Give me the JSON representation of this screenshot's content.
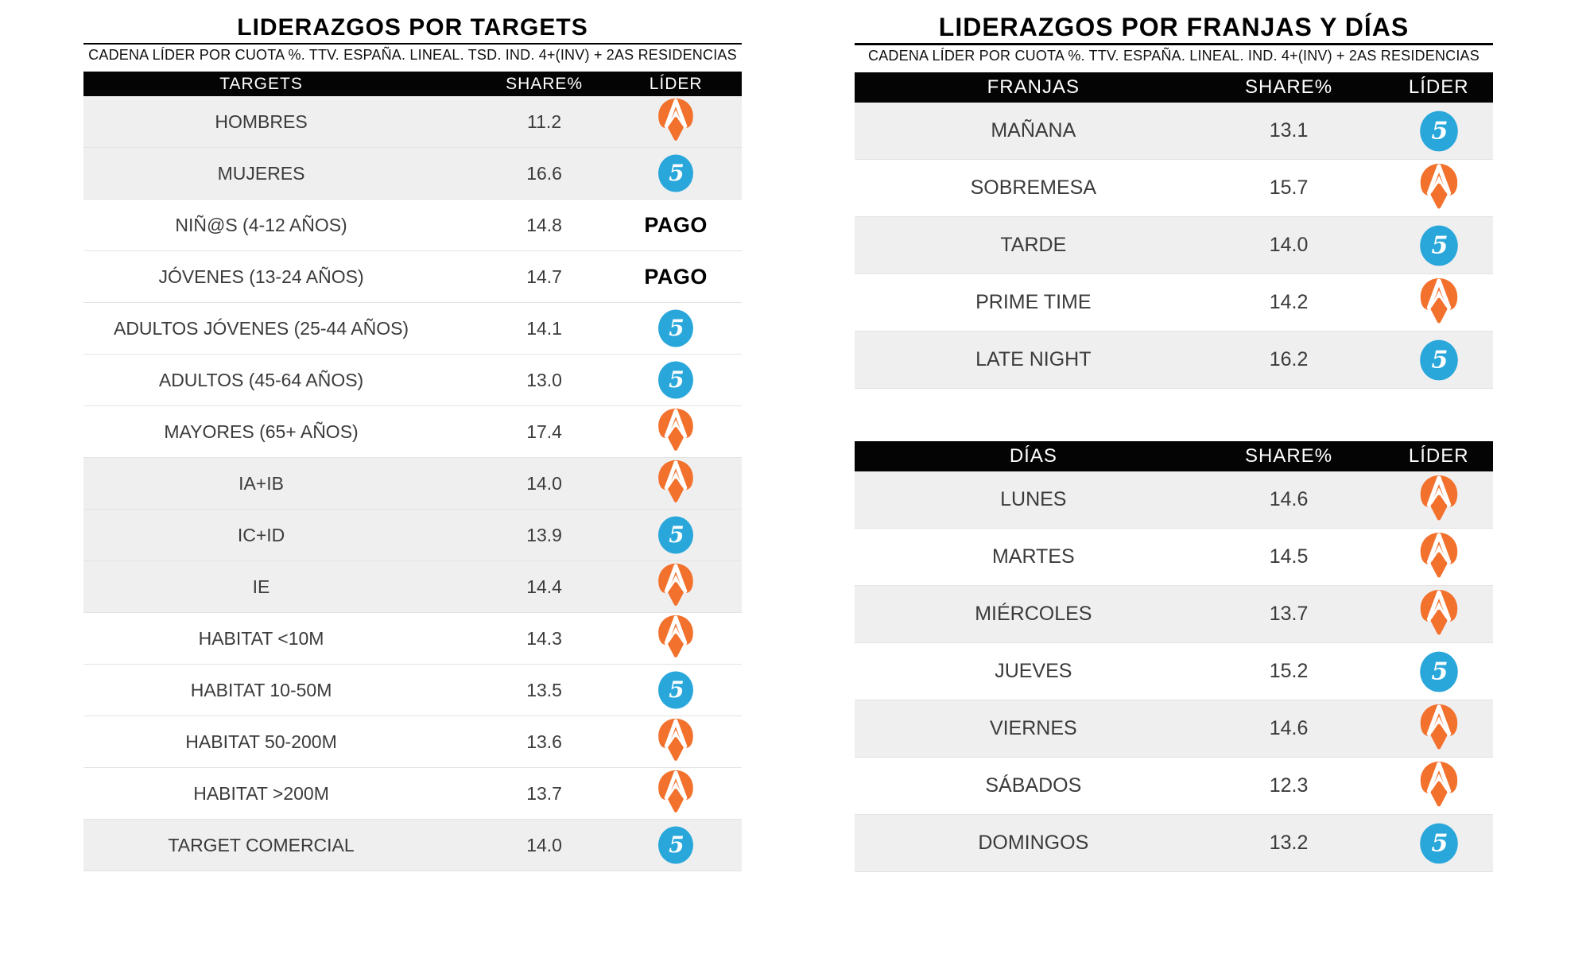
{
  "left_table": {
    "title": "LIDERAZGOS POR TARGETS",
    "subtitle": "CADENA LÍDER POR CUOTA %. TTV. ESPAÑA. LINEAL. TSD. IND. 4+(INV) + 2AS RESIDENCIAS",
    "columns": [
      "TARGETS",
      "SHARE%",
      "LÍDER"
    ],
    "rows": [
      {
        "label": "HOMBRES",
        "share": "11.2",
        "leader": "antena3",
        "shaded": true
      },
      {
        "label": "MUJERES",
        "share": "16.6",
        "leader": "telecinco",
        "shaded": true
      },
      {
        "label": "NIÑ@S (4-12 AÑOS)",
        "share": "14.8",
        "leader": "pago",
        "shaded": false
      },
      {
        "label": "JÓVENES (13-24 AÑOS)",
        "share": "14.7",
        "leader": "pago",
        "shaded": false
      },
      {
        "label": "ADULTOS JÓVENES (25-44 AÑOS)",
        "share": "14.1",
        "leader": "telecinco",
        "shaded": false
      },
      {
        "label": "ADULTOS (45-64 AÑOS)",
        "share": "13.0",
        "leader": "telecinco",
        "shaded": false
      },
      {
        "label": "MAYORES (65+ AÑOS)",
        "share": "17.4",
        "leader": "antena3",
        "shaded": false
      },
      {
        "label": "IA+IB",
        "share": "14.0",
        "leader": "antena3",
        "shaded": true
      },
      {
        "label": "IC+ID",
        "share": "13.9",
        "leader": "telecinco",
        "shaded": true
      },
      {
        "label": "IE",
        "share": "14.4",
        "leader": "antena3",
        "shaded": true
      },
      {
        "label": "HABITAT <10M",
        "share": "14.3",
        "leader": "antena3",
        "shaded": false
      },
      {
        "label": "HABITAT 10-50M",
        "share": "13.5",
        "leader": "telecinco",
        "shaded": false
      },
      {
        "label": "HABITAT 50-200M",
        "share": "13.6",
        "leader": "antena3",
        "shaded": false
      },
      {
        "label": "HABITAT >200M",
        "share": "13.7",
        "leader": "antena3",
        "shaded": false
      },
      {
        "label": "TARGET COMERCIAL",
        "share": "14.0",
        "leader": "telecinco",
        "shaded": true
      }
    ]
  },
  "right_table": {
    "title": "LIDERAZGOS POR FRANJAS Y DÍAS",
    "subtitle": "CADENA LÍDER POR CUOTA %. TTV. ESPAÑA. LINEAL. IND. 4+(INV) + 2AS RESIDENCIAS",
    "franjas": {
      "columns": [
        "FRANJAS",
        "SHARE%",
        "LÍDER"
      ],
      "rows": [
        {
          "label": "MAÑANA",
          "share": "13.1",
          "leader": "telecinco",
          "shaded": true
        },
        {
          "label": "SOBREMESA",
          "share": "15.7",
          "leader": "antena3",
          "shaded": false
        },
        {
          "label": "TARDE",
          "share": "14.0",
          "leader": "telecinco",
          "shaded": true
        },
        {
          "label": "PRIME TIME",
          "share": "14.2",
          "leader": "antena3",
          "shaded": false
        },
        {
          "label": "LATE NIGHT",
          "share": "16.2",
          "leader": "telecinco",
          "shaded": true
        }
      ]
    },
    "dias": {
      "columns": [
        "DÍAS",
        "SHARE%",
        "LÍDER"
      ],
      "rows": [
        {
          "label": "LUNES",
          "share": "14.6",
          "leader": "antena3",
          "shaded": true
        },
        {
          "label": "MARTES",
          "share": "14.5",
          "leader": "antena3",
          "shaded": false
        },
        {
          "label": "MIÉRCOLES",
          "share": "13.7",
          "leader": "antena3",
          "shaded": true
        },
        {
          "label": "JUEVES",
          "share": "15.2",
          "leader": "telecinco",
          "shaded": false
        },
        {
          "label": "VIERNES",
          "share": "14.6",
          "leader": "antena3",
          "shaded": true
        },
        {
          "label": "SÁBADOS",
          "share": "12.3",
          "leader": "antena3",
          "shaded": false
        },
        {
          "label": "DOMINGOS",
          "share": "13.2",
          "leader": "telecinco",
          "shaded": true
        }
      ]
    }
  },
  "leaders": {
    "antena3": {
      "name": "Antena 3",
      "color": "#F2712C"
    },
    "telecinco": {
      "name": "Telecinco",
      "color": "#29A7DB",
      "glyph": "5"
    },
    "pago": {
      "label": "PAGO"
    }
  },
  "chart_data": [
    {
      "type": "table",
      "title": "LIDERAZGOS POR TARGETS",
      "subtitle": "CADENA LÍDER POR CUOTA %. TTV. ESPAÑA. LINEAL. TSD. IND. 4+(INV) + 2AS RESIDENCIAS",
      "columns": [
        "TARGETS",
        "SHARE%",
        "LÍDER"
      ],
      "rows": [
        [
          "HOMBRES",
          11.2,
          "Antena 3"
        ],
        [
          "MUJERES",
          16.6,
          "Telecinco"
        ],
        [
          "NIÑ@S (4-12 AÑOS)",
          14.8,
          "PAGO"
        ],
        [
          "JÓVENES (13-24 AÑOS)",
          14.7,
          "PAGO"
        ],
        [
          "ADULTOS JÓVENES (25-44 AÑOS)",
          14.1,
          "Telecinco"
        ],
        [
          "ADULTOS (45-64 AÑOS)",
          13.0,
          "Telecinco"
        ],
        [
          "MAYORES (65+ AÑOS)",
          17.4,
          "Antena 3"
        ],
        [
          "IA+IB",
          14.0,
          "Antena 3"
        ],
        [
          "IC+ID",
          13.9,
          "Telecinco"
        ],
        [
          "IE",
          14.4,
          "Antena 3"
        ],
        [
          "HABITAT <10M",
          14.3,
          "Antena 3"
        ],
        [
          "HABITAT 10-50M",
          13.5,
          "Telecinco"
        ],
        [
          "HABITAT 50-200M",
          13.6,
          "Antena 3"
        ],
        [
          "HABITAT >200M",
          13.7,
          "Antena 3"
        ],
        [
          "TARGET COMERCIAL",
          14.0,
          "Telecinco"
        ]
      ]
    },
    {
      "type": "table",
      "title": "LIDERAZGOS POR FRANJAS Y DÍAS",
      "subtitle": "CADENA LÍDER POR CUOTA %. TTV. ESPAÑA. LINEAL. IND. 4+(INV) + 2AS RESIDENCIAS",
      "columns": [
        "FRANJAS",
        "SHARE%",
        "LÍDER"
      ],
      "rows": [
        [
          "MAÑANA",
          13.1,
          "Telecinco"
        ],
        [
          "SOBREMESA",
          15.7,
          "Antena 3"
        ],
        [
          "TARDE",
          14.0,
          "Telecinco"
        ],
        [
          "PRIME TIME",
          14.2,
          "Antena 3"
        ],
        [
          "LATE NIGHT",
          16.2,
          "Telecinco"
        ]
      ]
    },
    {
      "type": "table",
      "title": "LIDERAZGOS POR FRANJAS Y DÍAS",
      "subtitle": "CADENA LÍDER POR CUOTA %. TTV. ESPAÑA. LINEAL. IND. 4+(INV) + 2AS RESIDENCIAS",
      "columns": [
        "DÍAS",
        "SHARE%",
        "LÍDER"
      ],
      "rows": [
        [
          "LUNES",
          14.6,
          "Antena 3"
        ],
        [
          "MARTES",
          14.5,
          "Antena 3"
        ],
        [
          "MIÉRCOLES",
          13.7,
          "Antena 3"
        ],
        [
          "JUEVES",
          15.2,
          "Telecinco"
        ],
        [
          "VIERNES",
          14.6,
          "Antena 3"
        ],
        [
          "SÁBADOS",
          12.3,
          "Antena 3"
        ],
        [
          "DOMINGOS",
          13.2,
          "Telecinco"
        ]
      ]
    }
  ]
}
